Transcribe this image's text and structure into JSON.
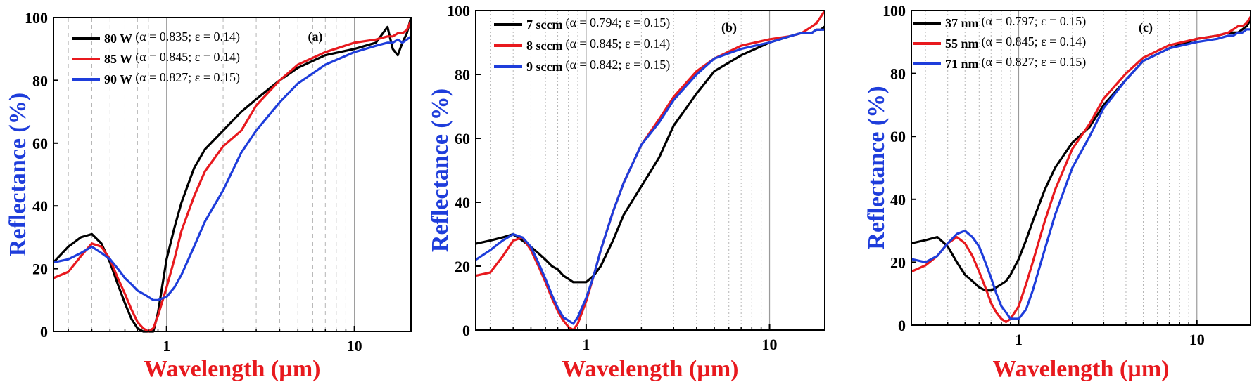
{
  "colors": {
    "black": "#000000",
    "red": "#e8191e",
    "blue": "#1e3ddb",
    "yTitle": "#1e3ddb",
    "xTitle": "#e8191e"
  },
  "chart_data": [
    {
      "type": "line",
      "panel_label": "(a)",
      "xlabel": "Wavelength (µm)",
      "ylabel": "Reflectance (%)",
      "xscale": "log",
      "xlim": [
        0.25,
        20
      ],
      "ylim": [
        0,
        100
      ],
      "x_ticks": [
        "1",
        "10"
      ],
      "y_ticks": [
        "0",
        "20",
        "40",
        "60",
        "80",
        "100"
      ],
      "grid": "vertical dashed",
      "legend_position": "top-left",
      "series": [
        {
          "name": "80 W",
          "params": "(α = 0.835; ε = 0.14)",
          "color": "black",
          "x": [
            0.25,
            0.3,
            0.35,
            0.4,
            0.45,
            0.5,
            0.55,
            0.6,
            0.65,
            0.7,
            0.75,
            0.8,
            0.85,
            0.9,
            1.0,
            1.1,
            1.2,
            1.4,
            1.6,
            2.0,
            2.5,
            3.0,
            4.0,
            5.0,
            7.0,
            10.0,
            13.0,
            15.0,
            16.0,
            17.0,
            18.0,
            19.0,
            20.0
          ],
          "y": [
            22,
            27,
            30,
            31,
            28,
            22,
            15,
            9,
            4,
            1,
            0,
            0,
            0,
            6,
            23,
            33,
            41,
            52,
            58,
            64,
            70,
            74,
            80,
            84,
            88,
            90,
            92,
            97,
            90,
            88,
            92,
            95,
            100
          ]
        },
        {
          "name": "85 W",
          "params": "(α = 0.845; ε = 0.14)",
          "color": "red",
          "x": [
            0.25,
            0.3,
            0.35,
            0.4,
            0.45,
            0.5,
            0.55,
            0.6,
            0.65,
            0.7,
            0.75,
            0.8,
            0.85,
            0.9,
            1.0,
            1.1,
            1.2,
            1.4,
            1.6,
            2.0,
            2.5,
            3.0,
            4.0,
            5.0,
            7.0,
            10.0,
            13.0,
            15.0,
            16.0,
            17.0,
            18.0,
            19.0,
            20.0
          ],
          "y": [
            17,
            19,
            24,
            28,
            27,
            23,
            17,
            12,
            7,
            3,
            1,
            0,
            1,
            5,
            14,
            23,
            32,
            43,
            51,
            59,
            64,
            72,
            80,
            85,
            89,
            92,
            93,
            94,
            94,
            95,
            95,
            96,
            99
          ]
        },
        {
          "name": "90 W",
          "params": "(α = 0.827; ε = 0.15)",
          "color": "blue",
          "x": [
            0.25,
            0.3,
            0.35,
            0.4,
            0.45,
            0.5,
            0.55,
            0.6,
            0.65,
            0.7,
            0.75,
            0.8,
            0.85,
            0.9,
            1.0,
            1.1,
            1.2,
            1.4,
            1.6,
            2.0,
            2.5,
            3.0,
            4.0,
            5.0,
            7.0,
            10.0,
            13.0,
            15.0,
            16.0,
            17.0,
            18.0,
            19.0,
            20.0
          ],
          "y": [
            22,
            23,
            25,
            27,
            25,
            23,
            20,
            17,
            15,
            13,
            12,
            11,
            10,
            10,
            11,
            14,
            18,
            27,
            35,
            45,
            57,
            64,
            73,
            79,
            85,
            89,
            91,
            92,
            92,
            93,
            92,
            93,
            94
          ]
        }
      ]
    },
    {
      "type": "line",
      "panel_label": "(b)",
      "xlabel": "Wavelength (µm)",
      "ylabel": "Reflectance (%)",
      "xscale": "log",
      "xlim": [
        0.25,
        20
      ],
      "ylim": [
        0,
        100
      ],
      "x_ticks": [
        "1",
        "10"
      ],
      "y_ticks": [
        "0",
        "20",
        "40",
        "60",
        "80",
        "100"
      ],
      "grid": "vertical dotted",
      "legend_position": "top-left",
      "series": [
        {
          "name": "7 sccm",
          "params": "(α = 0.794; ε = 0.15)",
          "color": "black",
          "x": [
            0.25,
            0.3,
            0.35,
            0.4,
            0.45,
            0.5,
            0.55,
            0.6,
            0.65,
            0.7,
            0.75,
            0.8,
            0.85,
            0.9,
            1.0,
            1.1,
            1.2,
            1.4,
            1.6,
            2.0,
            2.5,
            3.0,
            4.0,
            5.0,
            7.0,
            10.0,
            13.0,
            15.0,
            16.0,
            17.0,
            18.0,
            19.0,
            20.0
          ],
          "y": [
            27,
            28,
            29,
            30,
            28,
            26,
            24,
            22,
            20,
            19,
            17,
            16,
            15,
            15,
            15,
            17,
            20,
            28,
            36,
            45,
            54,
            64,
            74,
            81,
            86,
            90,
            92,
            93,
            93,
            93,
            94,
            94,
            95
          ]
        },
        {
          "name": "8 sccm",
          "params": "(α = 0.845; ε = 0.14)",
          "color": "red",
          "x": [
            0.25,
            0.3,
            0.35,
            0.4,
            0.45,
            0.5,
            0.55,
            0.6,
            0.65,
            0.7,
            0.75,
            0.8,
            0.85,
            0.9,
            1.0,
            1.1,
            1.2,
            1.4,
            1.6,
            2.0,
            2.5,
            3.0,
            4.0,
            5.0,
            7.0,
            10.0,
            13.0,
            15.0,
            16.0,
            17.0,
            18.0,
            19.0,
            20.0
          ],
          "y": [
            17,
            18,
            23,
            28,
            29,
            25,
            20,
            15,
            10,
            6,
            3,
            1,
            0,
            2,
            9,
            17,
            25,
            37,
            46,
            58,
            66,
            73,
            81,
            85,
            89,
            91,
            92,
            93,
            94,
            95,
            96,
            98,
            100
          ]
        },
        {
          "name": "9 sccm",
          "params": "(α = 0.842; ε = 0.15)",
          "color": "blue",
          "x": [
            0.25,
            0.3,
            0.35,
            0.4,
            0.45,
            0.5,
            0.55,
            0.6,
            0.65,
            0.7,
            0.75,
            0.8,
            0.85,
            0.9,
            1.0,
            1.1,
            1.2,
            1.4,
            1.6,
            2.0,
            2.5,
            3.0,
            4.0,
            5.0,
            7.0,
            10.0,
            13.0,
            15.0,
            16.0,
            17.0,
            18.0,
            19.0,
            20.0
          ],
          "y": [
            22,
            25,
            28,
            30,
            29,
            26,
            21,
            16,
            11,
            7,
            4,
            3,
            2,
            4,
            10,
            17,
            25,
            37,
            46,
            58,
            65,
            72,
            80,
            85,
            88,
            90,
            92,
            93,
            93,
            93,
            94,
            94,
            94
          ]
        }
      ]
    },
    {
      "type": "line",
      "panel_label": "(c)",
      "xlabel": "Wavelength (µm)",
      "ylabel": "Reflectance (%)",
      "xscale": "log",
      "xlim": [
        0.25,
        20
      ],
      "ylim": [
        0,
        100
      ],
      "x_ticks": [
        "1",
        "10"
      ],
      "y_ticks": [
        "0",
        "20",
        "40",
        "60",
        "80",
        "100"
      ],
      "grid": "vertical dotted",
      "legend_position": "top-left",
      "series": [
        {
          "name": "37 nm",
          "params": "(α = 0.797; ε = 0.15)",
          "color": "black",
          "x": [
            0.25,
            0.3,
            0.35,
            0.4,
            0.45,
            0.5,
            0.55,
            0.6,
            0.65,
            0.7,
            0.75,
            0.8,
            0.85,
            0.9,
            1.0,
            1.1,
            1.2,
            1.4,
            1.6,
            2.0,
            2.5,
            3.0,
            4.0,
            5.0,
            7.0,
            10.0,
            13.0,
            15.0,
            16.0,
            17.0,
            18.0,
            19.0,
            20.0
          ],
          "y": [
            26,
            27,
            28,
            25,
            20,
            16,
            14,
            12,
            11,
            11,
            12,
            13,
            14,
            16,
            21,
            27,
            33,
            43,
            50,
            58,
            63,
            70,
            78,
            84,
            88,
            91,
            92,
            93,
            93,
            93,
            94,
            95,
            97
          ]
        },
        {
          "name": "55 nm",
          "params": "(α = 0.845; ε = 0.14)",
          "color": "red",
          "x": [
            0.25,
            0.3,
            0.35,
            0.4,
            0.45,
            0.5,
            0.55,
            0.6,
            0.65,
            0.7,
            0.75,
            0.8,
            0.85,
            0.9,
            1.0,
            1.1,
            1.2,
            1.4,
            1.6,
            2.0,
            2.5,
            3.0,
            4.0,
            5.0,
            7.0,
            10.0,
            13.0,
            15.0,
            16.0,
            17.0,
            18.0,
            19.0,
            20.0
          ],
          "y": [
            17,
            19,
            22,
            26,
            28,
            26,
            22,
            17,
            12,
            7,
            4,
            2,
            1,
            2,
            6,
            13,
            20,
            33,
            43,
            56,
            64,
            72,
            80,
            85,
            89,
            91,
            92,
            93,
            94,
            95,
            95,
            96,
            98
          ]
        },
        {
          "name": "71 nm",
          "params": "(α = 0.827; ε = 0.15)",
          "color": "blue",
          "x": [
            0.25,
            0.3,
            0.35,
            0.4,
            0.45,
            0.5,
            0.55,
            0.6,
            0.65,
            0.7,
            0.75,
            0.8,
            0.85,
            0.9,
            1.0,
            1.1,
            1.2,
            1.4,
            1.6,
            2.0,
            2.5,
            3.0,
            4.0,
            5.0,
            7.0,
            10.0,
            13.0,
            15.0,
            16.0,
            17.0,
            18.0,
            19.0,
            20.0
          ],
          "y": [
            21,
            20,
            22,
            26,
            29,
            30,
            28,
            25,
            20,
            15,
            10,
            6,
            4,
            2,
            2,
            5,
            11,
            24,
            35,
            50,
            60,
            69,
            78,
            84,
            88,
            90,
            91,
            92,
            92,
            93,
            93,
            94,
            94
          ]
        }
      ]
    }
  ]
}
